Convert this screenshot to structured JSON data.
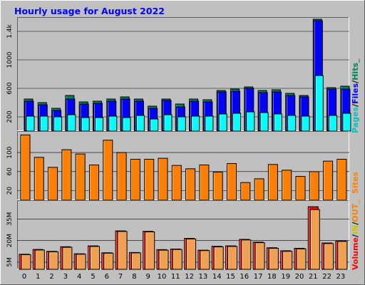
{
  "chart_data": [
    {
      "type": "bar",
      "title": "Hourly usage for August 2022",
      "categories": [
        "0",
        "1",
        "2",
        "3",
        "4",
        "5",
        "6",
        "7",
        "8",
        "9",
        "10",
        "11",
        "12",
        "13",
        "14",
        "15",
        "16",
        "17",
        "18",
        "19",
        "20",
        "21",
        "22",
        "23"
      ],
      "y_ticks": [
        "200",
        "600",
        "1000",
        "1.4k"
      ],
      "ylim": [
        0,
        1600
      ],
      "legend": [
        "Pages",
        "/",
        "Files",
        "/",
        "Hits",
        "_"
      ],
      "colors": {
        "hits": "#00805c",
        "files": "#0000ff",
        "pages": "#00ffff"
      },
      "series": [
        {
          "name": "Hits",
          "values": [
            450,
            400,
            320,
            500,
            410,
            420,
            450,
            480,
            450,
            350,
            450,
            380,
            450,
            440,
            570,
            590,
            620,
            570,
            580,
            530,
            500,
            1570,
            610,
            630
          ]
        },
        {
          "name": "Files",
          "values": [
            420,
            370,
            290,
            450,
            380,
            390,
            420,
            450,
            420,
            320,
            430,
            340,
            420,
            410,
            550,
            560,
            600,
            540,
            550,
            500,
            480,
            1550,
            590,
            590
          ]
        },
        {
          "name": "Pages",
          "values": [
            210,
            210,
            200,
            230,
            190,
            190,
            210,
            190,
            220,
            170,
            230,
            200,
            210,
            210,
            240,
            250,
            270,
            260,
            240,
            220,
            210,
            780,
            220,
            250
          ]
        }
      ]
    },
    {
      "type": "bar",
      "categories": [
        "0",
        "1",
        "2",
        "3",
        "4",
        "5",
        "6",
        "7",
        "8",
        "9",
        "10",
        "11",
        "12",
        "13",
        "14",
        "15",
        "16",
        "17",
        "18",
        "19",
        "20",
        "21",
        "22",
        "23"
      ],
      "y_ticks": [
        "20",
        "60",
        "100"
      ],
      "ylim": [
        0,
        145
      ],
      "legend": [
        "Sites"
      ],
      "colors": {
        "sites": "#ff8000"
      },
      "series": [
        {
          "name": "Sites",
          "values": [
            137,
            90,
            69,
            106,
            97,
            74,
            126,
            100,
            86,
            86,
            88,
            73,
            66,
            74,
            59,
            77,
            37,
            45,
            75,
            63,
            50,
            60,
            82,
            86
          ]
        }
      ]
    },
    {
      "type": "bar",
      "categories": [
        "0",
        "1",
        "2",
        "3",
        "4",
        "5",
        "6",
        "7",
        "8",
        "9",
        "10",
        "11",
        "12",
        "13",
        "14",
        "15",
        "16",
        "17",
        "18",
        "19",
        "20",
        "21",
        "22",
        "23"
      ],
      "y_ticks": [
        "5M",
        "20M",
        "35M"
      ],
      "ylim": [
        0,
        48
      ],
      "legend": [
        "Volume",
        "/",
        "IN",
        "/",
        "OUT",
        "_"
      ],
      "colors": {
        "volume": "#ff0000",
        "in": "#ffff00",
        "out": "#ff8000"
      },
      "series": [
        {
          "name": "Volume",
          "values": [
            10.5,
            13.8,
            12.5,
            15.7,
            10.8,
            16.3,
            11.5,
            26.7,
            11.7,
            26.4,
            13.7,
            14.1,
            21.5,
            13.3,
            16.0,
            16.3,
            20.8,
            18.9,
            15.0,
            12.9,
            14.6,
            43.5,
            18.3,
            19.8
          ]
        },
        {
          "name": "OUT",
          "values": [
            10.2,
            13.4,
            12.2,
            15.3,
            10.5,
            15.9,
            11.2,
            26.3,
            11.4,
            26.0,
            13.3,
            13.8,
            21.1,
            13.0,
            15.6,
            15.9,
            20.4,
            18.5,
            14.6,
            12.5,
            14.2,
            41.5,
            17.9,
            19.4
          ]
        }
      ]
    }
  ]
}
